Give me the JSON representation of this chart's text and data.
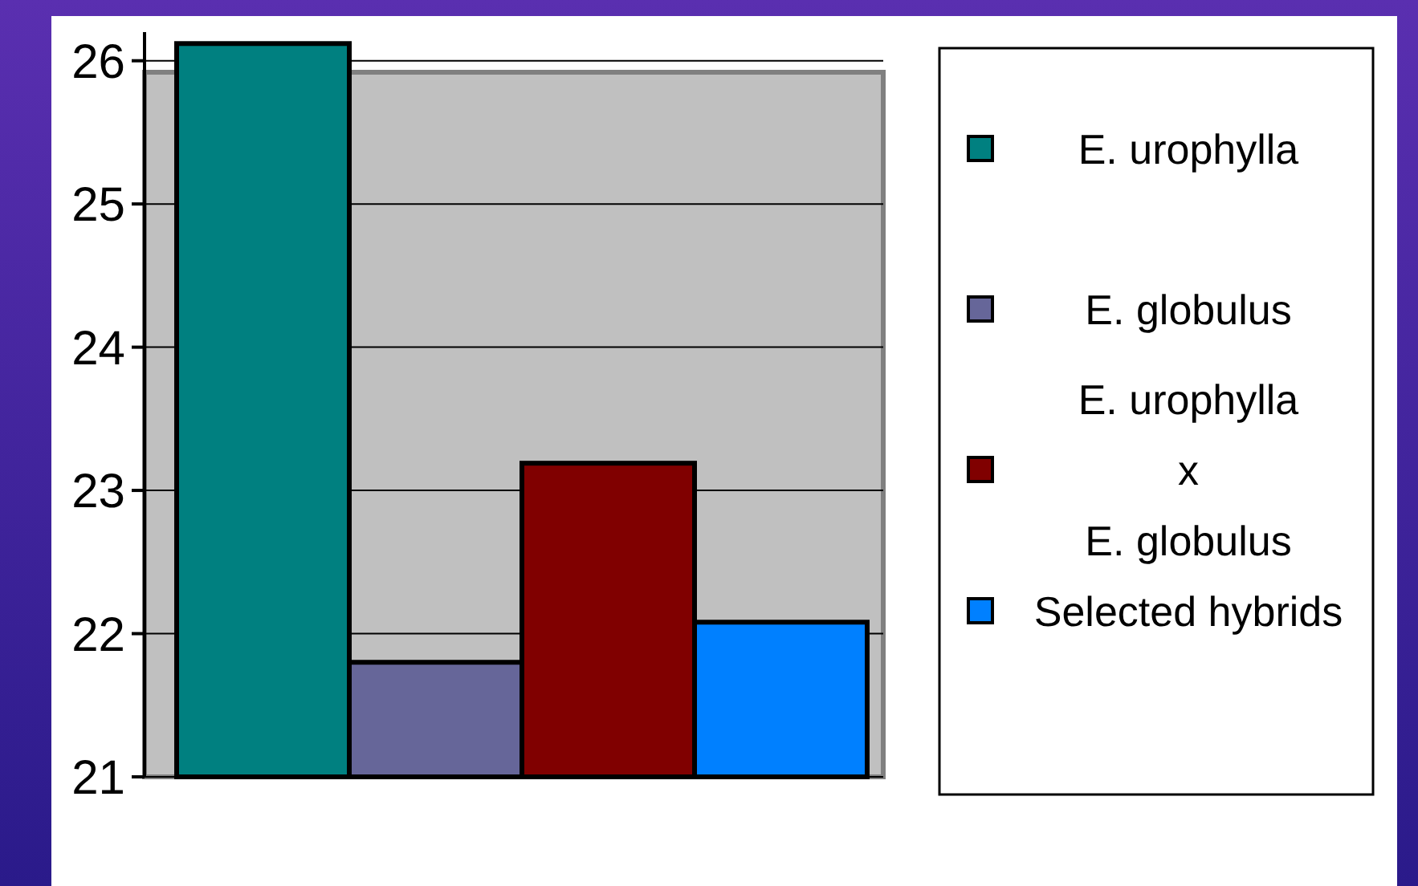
{
  "chart_data": {
    "type": "bar",
    "categories": [
      null
    ],
    "series": [
      {
        "name": "E. urophylla",
        "color": "#008080",
        "values": [
          26.12
        ]
      },
      {
        "name": "E. globulus",
        "color": "#666699",
        "values": [
          21.8
        ]
      },
      {
        "name": "E. urophylla\nx\nE. globulus",
        "color": "#800000",
        "values": [
          23.19
        ]
      },
      {
        "name": "Selected hybrids",
        "color": "#0080ff",
        "values": [
          22.08
        ]
      }
    ],
    "ylim": [
      21,
      26.2
    ],
    "yticks": [
      21,
      22,
      23,
      24,
      25,
      26
    ],
    "grid": "y",
    "legend": "right"
  }
}
